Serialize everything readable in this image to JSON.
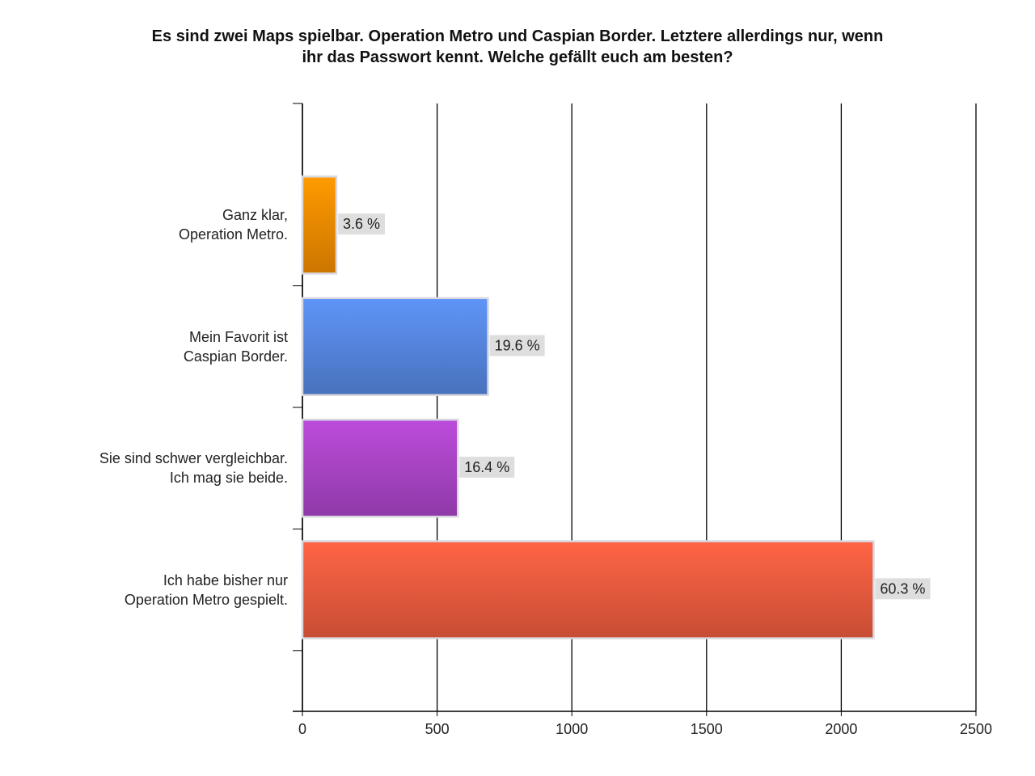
{
  "chart_data": {
    "type": "bar",
    "orientation": "horizontal",
    "title": "Es sind zwei Maps spielbar. Operation Metro und Caspian Border. Letztere allerdings nur, wenn\nihr das Passwort kennt. Welche gefällt euch am besten?",
    "categories": [
      "Ganz klar,\nOperation Metro.",
      "Mein Favorit ist\nCaspian Border.",
      "Sie sind schwer vergleichbar.\nIch mag sie beide.",
      "Ich habe bisher nur\nOperation Metro gespielt."
    ],
    "values": [
      126,
      689,
      577,
      2120
    ],
    "value_labels": [
      "3.6 %",
      "19.6 %",
      "16.4 %",
      "60.3 %"
    ],
    "colors": [
      "#f08a00",
      "#5585dd",
      "#a844c4",
      "#ea5a3e"
    ],
    "xlim": [
      0,
      2500
    ],
    "xticks": [
      0,
      500,
      1000,
      1500,
      2000,
      2500
    ],
    "grid": true
  }
}
